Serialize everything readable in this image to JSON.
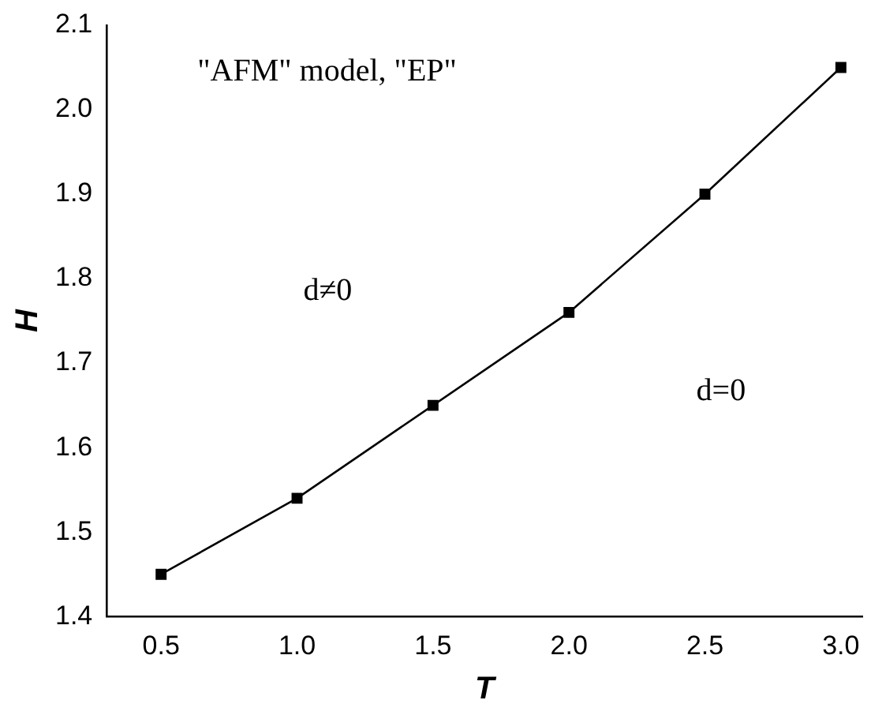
{
  "chart_data": {
    "type": "line",
    "xlabel": "T",
    "ylabel": "H",
    "x": [
      0.5,
      1.0,
      1.5,
      2.0,
      2.5,
      3.0
    ],
    "series": [
      {
        "color": "#000000",
        "values": [
          1.45,
          1.54,
          1.65,
          1.76,
          1.9,
          2.05
        ]
      }
    ],
    "xlim": [
      0.3,
      3.08
    ],
    "xticks": [
      {
        "value": 0.5,
        "label": "0.5"
      },
      {
        "value": 1.0,
        "label": "1.0"
      },
      {
        "value": 1.5,
        "label": "1.5"
      },
      {
        "value": 2.0,
        "label": "2.0"
      },
      {
        "value": 2.5,
        "label": "2.5"
      },
      {
        "value": 3.0,
        "label": "3.0"
      }
    ],
    "ylim": [
      1.4,
      2.1
    ],
    "yticks": [
      {
        "value": 1.4,
        "label": "1.4"
      },
      {
        "value": 1.5,
        "label": "1.5"
      },
      {
        "value": 1.6,
        "label": "1.6"
      },
      {
        "value": 1.7,
        "label": "1.7"
      },
      {
        "value": 1.8,
        "label": "1.8"
      },
      {
        "value": 1.9,
        "label": "1.9"
      },
      {
        "value": 2.0,
        "label": "2.0"
      },
      {
        "value": 2.1,
        "label": "2.1"
      }
    ],
    "annotations": [
      "\"AFM\" model, \"EP\"",
      "d≠0",
      "d=0"
    ],
    "grid": false,
    "legend": false,
    "marker": "square",
    "line_style": "solid"
  }
}
